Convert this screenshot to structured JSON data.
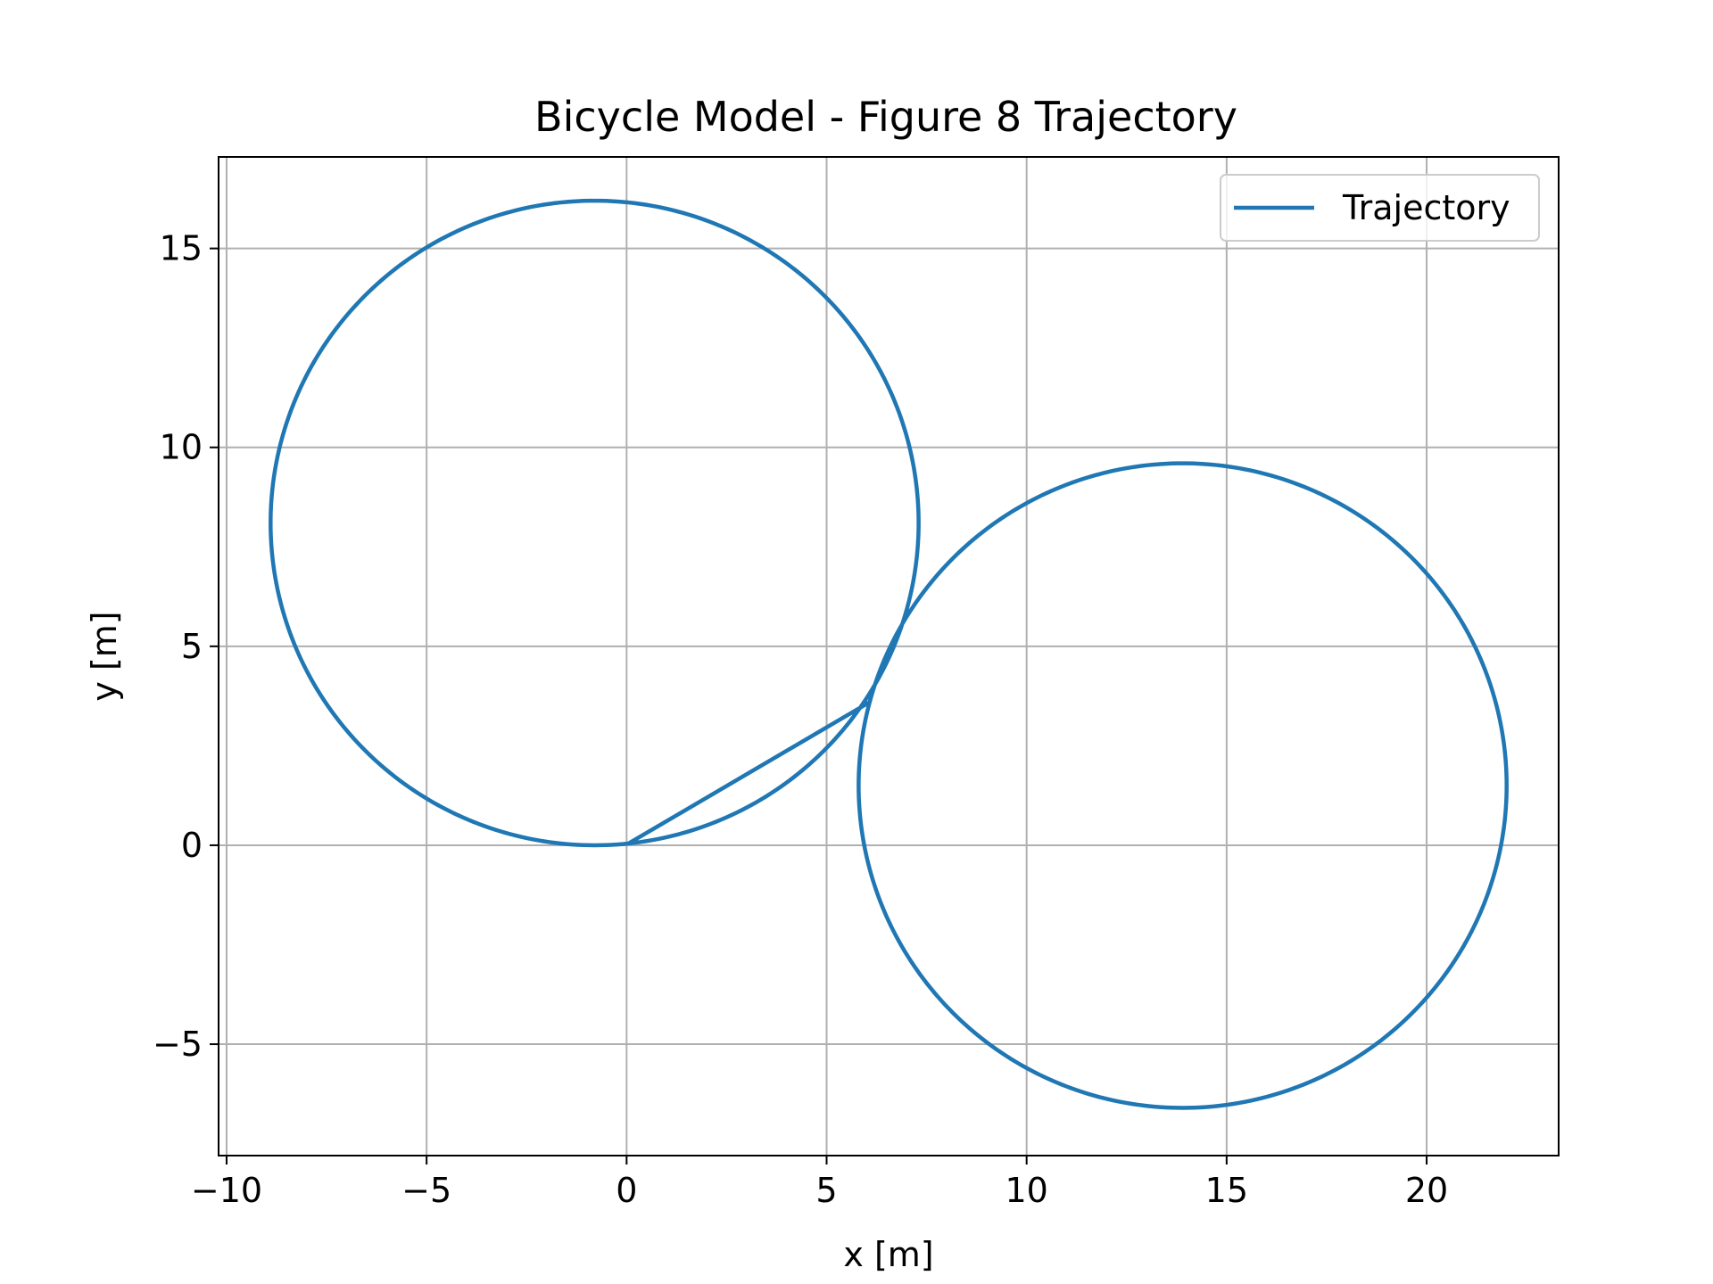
{
  "chart_data": {
    "type": "line",
    "title": "Bicycle Model - Figure 8 Trajectory",
    "xlabel": "x [m]",
    "ylabel": "y [m]",
    "xlim": [
      -10.2,
      23.3
    ],
    "ylim": [
      -7.8,
      17.3
    ],
    "xticks": [
      -10,
      -5,
      0,
      5,
      10,
      15,
      20
    ],
    "xtick_labels": [
      "−10",
      "−5",
      "0",
      "5",
      "10",
      "15",
      "20"
    ],
    "yticks": [
      -5,
      0,
      5,
      10,
      15
    ],
    "ytick_labels": [
      "−5",
      "0",
      "5",
      "10",
      "15"
    ],
    "grid": true,
    "legend": {
      "location": "upper right",
      "entries": [
        "Trajectory"
      ]
    },
    "series": [
      {
        "name": "Trajectory",
        "color": "#1f77b4",
        "segments": [
          {
            "shape": "circle",
            "center": [
              -0.8,
              8.1
            ],
            "radius": 8.1,
            "start_deg": -84,
            "end_deg": 276,
            "direction": "counterclockwise"
          },
          {
            "shape": "circle",
            "center": [
              13.9,
              1.5
            ],
            "radius": 8.1,
            "start_deg": 165,
            "end_deg": -195,
            "direction": "clockwise"
          }
        ],
        "sample_points": [
          [
            0.0,
            0.0
          ],
          [
            3.2,
            1.2
          ],
          [
            6.0,
            3.7
          ],
          [
            7.3,
            8.1
          ],
          [
            6.4,
            12.8
          ],
          [
            -0.8,
            16.2
          ],
          [
            -8.9,
            8.1
          ],
          [
            -5.0,
            1.1
          ],
          [
            -0.8,
            0.0
          ],
          [
            3.0,
            1.0
          ],
          [
            6.0,
            3.8
          ],
          [
            7.2,
            6.0
          ],
          [
            10.0,
            8.6
          ],
          [
            13.9,
            9.6
          ],
          [
            20.0,
            6.8
          ],
          [
            22.0,
            1.5
          ],
          [
            20.0,
            -3.8
          ],
          [
            13.9,
            -6.6
          ],
          [
            10.0,
            -5.6
          ],
          [
            6.0,
            1.5
          ],
          [
            6.2,
            3.7
          ],
          [
            7.5,
            6.5
          ]
        ]
      }
    ]
  }
}
